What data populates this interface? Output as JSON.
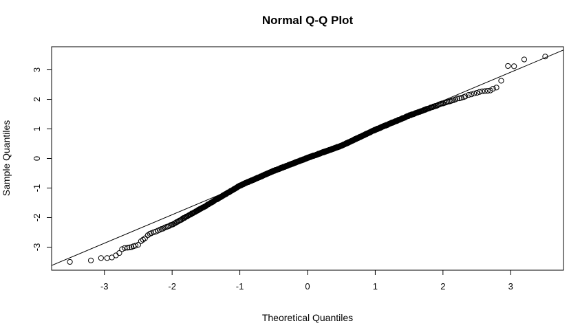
{
  "chart_data": {
    "type": "scatter",
    "title": "Normal Q-Q Plot",
    "xlabel": "Theoretical Quantiles",
    "ylabel": "Sample Quantiles",
    "xlim": [
      -3.78,
      3.78
    ],
    "ylim": [
      -3.78,
      3.78
    ],
    "x_ticks": [
      -3,
      -2,
      -1,
      0,
      1,
      2,
      3
    ],
    "x_tick_labels": [
      "-3",
      "-2",
      "-1",
      "0",
      "1",
      "2",
      "3"
    ],
    "y_ticks": [
      -3,
      -2,
      -1,
      0,
      1,
      2,
      3
    ],
    "y_tick_labels": [
      "-3",
      "-2",
      "-1",
      "0",
      "1",
      "2",
      "3"
    ],
    "grid": false,
    "legend": "none",
    "marker": "open-circle",
    "reference_line": {
      "type": "qq-line",
      "points": [
        [
          -3.78,
          -3.62
        ],
        [
          3.78,
          3.67
        ]
      ]
    },
    "sample_points": {
      "description": "sorted standard normal sample, light tails",
      "n": 1000,
      "tail_points": [
        [
          -3.51,
          -3.5
        ],
        [
          -3.2,
          -3.45
        ],
        [
          -3.05,
          -3.37
        ],
        [
          -2.96,
          -3.37
        ],
        [
          -2.89,
          -3.35
        ],
        [
          -2.83,
          -3.28
        ],
        [
          -2.78,
          -3.2
        ],
        [
          -2.74,
          -3.07
        ],
        [
          -2.7,
          -3.03
        ],
        [
          -2.66,
          -3.02
        ],
        [
          -2.63,
          -3.01
        ],
        [
          -2.6,
          -3.0
        ],
        [
          -2.57,
          -2.97
        ],
        [
          -2.54,
          -2.95
        ],
        [
          -2.5,
          -2.92
        ],
        [
          -2.46,
          -2.8
        ],
        [
          -2.43,
          -2.75
        ],
        [
          -2.4,
          -2.7
        ],
        [
          -2.36,
          -2.6
        ],
        [
          -2.33,
          -2.55
        ],
        [
          2.33,
          2.1
        ],
        [
          2.38,
          2.15
        ],
        [
          2.42,
          2.17
        ],
        [
          2.46,
          2.2
        ],
        [
          2.5,
          2.22
        ],
        [
          2.54,
          2.25
        ],
        [
          2.58,
          2.27
        ],
        [
          2.62,
          2.28
        ],
        [
          2.66,
          2.29
        ],
        [
          2.7,
          2.3
        ],
        [
          2.74,
          2.36
        ],
        [
          2.79,
          2.4
        ],
        [
          2.86,
          2.63
        ],
        [
          2.96,
          3.13
        ],
        [
          3.05,
          3.12
        ],
        [
          3.2,
          3.35
        ],
        [
          3.51,
          3.45
        ]
      ],
      "body_quantile_curve": [
        [
          -2.33,
          -2.55
        ],
        [
          -2.0,
          -2.24
        ],
        [
          -1.5,
          -1.6
        ],
        [
          -1.0,
          -0.92
        ],
        [
          -0.5,
          -0.42
        ],
        [
          0.0,
          0.02
        ],
        [
          0.5,
          0.43
        ],
        [
          1.0,
          0.97
        ],
        [
          1.5,
          1.45
        ],
        [
          2.0,
          1.87
        ],
        [
          2.33,
          2.1
        ]
      ]
    },
    "colors": {
      "points": "#000000",
      "line": "#000000",
      "box": "#000000",
      "background": "#ffffff"
    }
  }
}
